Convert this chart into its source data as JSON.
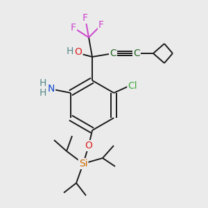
{
  "bg_color": "#ebebeb",
  "bond_color": "#1a1a1a",
  "bond_width": 1.4,
  "atom_colors": {
    "F": "#cc44cc",
    "O": "#dd2222",
    "H": "#558888",
    "N": "#1144cc",
    "Cl": "#44aa44",
    "C": "#226622",
    "Si": "#cc6600",
    "default": "#1a1a1a"
  }
}
